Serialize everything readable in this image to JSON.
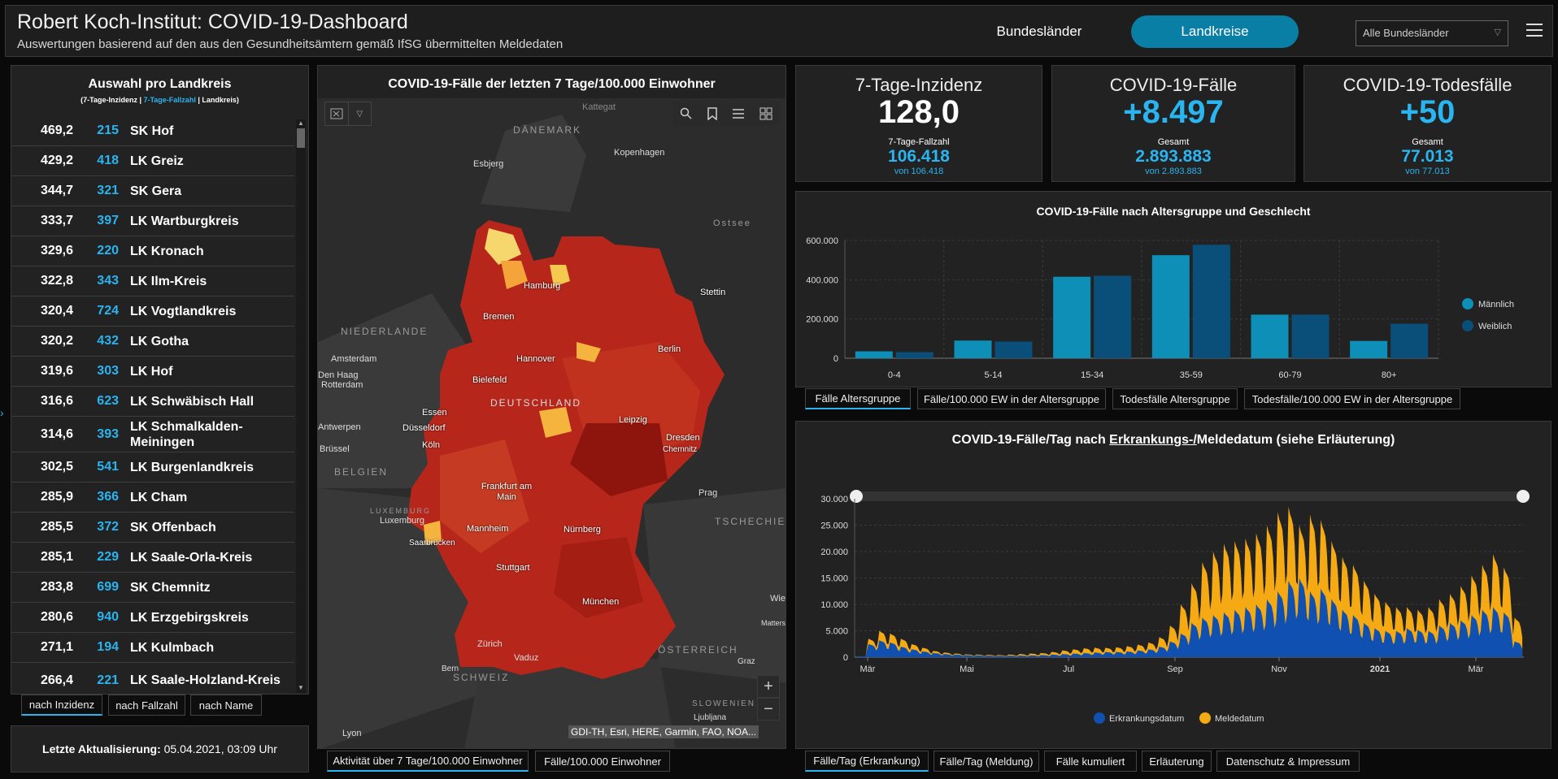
{
  "header": {
    "title": "Robert Koch-Institut: COVID-19-Dashboard",
    "subtitle": "Auswertungen basierend auf den aus den Gesundheitsämtern gemäß IfSG übermittelten Meldedaten",
    "tab_states": "Bundesländer",
    "tab_districts": "Landkreise",
    "select_value": "Alle Bundesländer",
    "accent": "#0a7fa6"
  },
  "list": {
    "title": "Auswahl pro Landkreis",
    "legend_a": "(7-Tage-Inzidenz | ",
    "legend_b": "7-Tage-Fallzahl",
    "legend_c": " | Landkreis)",
    "rows": [
      {
        "inc": "469,2",
        "cnt": "215",
        "name": "SK Hof"
      },
      {
        "inc": "429,2",
        "cnt": "418",
        "name": "LK Greiz"
      },
      {
        "inc": "344,7",
        "cnt": "321",
        "name": "SK Gera"
      },
      {
        "inc": "333,7",
        "cnt": "397",
        "name": "LK Wartburgkreis"
      },
      {
        "inc": "329,6",
        "cnt": "220",
        "name": "LK Kronach"
      },
      {
        "inc": "322,8",
        "cnt": "343",
        "name": "LK Ilm-Kreis"
      },
      {
        "inc": "320,4",
        "cnt": "724",
        "name": "LK Vogtlandkreis"
      },
      {
        "inc": "320,2",
        "cnt": "432",
        "name": "LK Gotha"
      },
      {
        "inc": "319,6",
        "cnt": "303",
        "name": "LK Hof"
      },
      {
        "inc": "316,6",
        "cnt": "623",
        "name": "LK Schwäbisch Hall"
      },
      {
        "inc": "314,6",
        "cnt": "393",
        "name": "LK Schmalkalden-Meiningen"
      },
      {
        "inc": "302,5",
        "cnt": "541",
        "name": "LK Burgenlandkreis"
      },
      {
        "inc": "285,9",
        "cnt": "366",
        "name": "LK Cham"
      },
      {
        "inc": "285,5",
        "cnt": "372",
        "name": "SK Offenbach"
      },
      {
        "inc": "285,1",
        "cnt": "229",
        "name": "LK Saale-Orla-Kreis"
      },
      {
        "inc": "283,8",
        "cnt": "699",
        "name": "SK Chemnitz"
      },
      {
        "inc": "280,6",
        "cnt": "940",
        "name": "LK Erzgebirgskreis"
      },
      {
        "inc": "271,1",
        "cnt": "194",
        "name": "LK Kulmbach"
      },
      {
        "inc": "266,4",
        "cnt": "221",
        "name": "LK Saale-Holzland-Kreis"
      }
    ],
    "sort_tabs": [
      "nach Inzidenz",
      "nach Fallzahl",
      "nach Name"
    ]
  },
  "update": {
    "label": "Letzte Aktualisierung:",
    "value": "05.04.2021, 03:09 Uhr"
  },
  "map": {
    "title": "COVID-19-Fälle der letzten 7 Tage/100.000 Einwohner",
    "attribution": "GDI-TH, Esri, HERE, Garmin, FAO, NOA...",
    "countries": [
      "DÄNEMARK",
      "NIEDERLANDE",
      "DEUTSCHLAND",
      "BELGIEN",
      "LUXEMBURG",
      "TSCHECHIE",
      "ÖSTERREICH",
      "SCHWEIZ",
      "SLOWENIEN"
    ],
    "cities": [
      "Kattegat",
      "Esbjerg",
      "Kopenhagen",
      "Ostsee",
      "Hamburg",
      "Stettin",
      "Bremen",
      "Amsterdam",
      "Den Haag",
      "Rotterdam",
      "Hannover",
      "Berlin",
      "Bielefeld",
      "Essen",
      "Düsseldorf",
      "Antwerpen",
      "Leipzig",
      "Dresden",
      "Köln",
      "Brüssel",
      "Chemnitz",
      "Frankfurt am Main",
      "Prag",
      "Luxemburg",
      "Saarbrücken",
      "Mannheim",
      "Nürnberg",
      "Stuttgart",
      "München",
      "Wie",
      "Matters",
      "Zürich",
      "Vaduz",
      "Graz",
      "Bern",
      "Ljubljana",
      "Lyon"
    ],
    "bottom_tabs": [
      "Aktivität über 7 Tage/100.000 Einwohner",
      "Fälle/100.000 Einwohner"
    ],
    "zoom_in": "+",
    "zoom_out": "−"
  },
  "kpis": [
    {
      "title": "7-Tage-Inzidenz",
      "value": "128,0",
      "sub_label": "7-Tage-Fallzahl",
      "sub_value": "106.418",
      "von": "von 106.418",
      "color": "#ffffff"
    },
    {
      "title": "COVID-19-Fälle",
      "value": "+8.497",
      "sub_label": "Gesamt",
      "sub_value": "2.893.883",
      "von": "von 2.893.883",
      "color": "#2ab4f0"
    },
    {
      "title": "COVID-19-Todesfälle",
      "value": "+50",
      "sub_label": "Gesamt",
      "sub_value": "77.013",
      "von": "von 77.013",
      "color": "#2ab4f0"
    }
  ],
  "age_chart": {
    "tabs": [
      "Fälle Altersgruppe",
      "Fälle/100.000 EW in der Altersgruppe",
      "Todesfälle Altersgruppe",
      "Todesfälle/100.000 EW in der Altersgruppe"
    ]
  },
  "daily_chart": {
    "title_a": "COVID-19-Fälle/Tag nach ",
    "title_u": "Erkrankungs-/",
    "title_b": "Meldedatum (siehe Erläuterung)",
    "tabs": [
      "Fälle/Tag (Erkrankung)",
      "Fälle/Tag (Meldung)",
      "Fälle kumuliert",
      "Erläuterung",
      "Datenschutz & Impressum"
    ]
  },
  "chart_data": [
    {
      "type": "bar",
      "title": "COVID-19-Fälle nach Altersgruppe und Geschlecht",
      "categories": [
        "0-4",
        "5-14",
        "15-34",
        "35-59",
        "60-79",
        "80+"
      ],
      "series": [
        {
          "name": "Männlich",
          "color": "#0d8fb8",
          "values": [
            35000,
            90000,
            415000,
            525000,
            222000,
            88000
          ]
        },
        {
          "name": "Weiblich",
          "color": "#0a4f7a",
          "values": [
            31000,
            85000,
            420000,
            578000,
            222000,
            176000
          ]
        }
      ],
      "ylim": [
        0,
        600000
      ],
      "yticks": [
        "0",
        "200.000",
        "400.000",
        "600.000"
      ],
      "legend": "right"
    },
    {
      "type": "area",
      "title": "COVID-19-Fälle/Tag nach Erkrankungs-/Meldedatum (siehe Erläuterung)",
      "x_labels": [
        "Mär",
        "Mai",
        "Jul",
        "Sep",
        "Nov",
        "2021",
        "Mär"
      ],
      "ylim": [
        0,
        30000
      ],
      "yticks": [
        "0",
        "5.000",
        "10.000",
        "15.000",
        "20.000",
        "25.000",
        "30.000"
      ],
      "series": [
        {
          "name": "Erkrankungsdatum",
          "color": "#1050b0",
          "weekly_peaks": [
            200,
            2500,
            3200,
            2800,
            2000,
            1500,
            1100,
            800,
            600,
            500,
            400,
            350,
            300,
            280,
            300,
            320,
            350,
            400,
            500,
            600,
            700,
            800,
            900,
            1000,
            1000,
            1100,
            1300,
            1500,
            2000,
            3000,
            4500,
            6500,
            7500,
            8000,
            8500,
            9000,
            9500,
            10000,
            11000,
            12500,
            14500,
            15000,
            12500,
            13000,
            11000,
            9000,
            8000,
            6500,
            5500,
            5000,
            5000,
            5500,
            5200,
            5000,
            6000,
            6500,
            7000,
            8000,
            9000,
            9500,
            8500,
            3000
          ]
        },
        {
          "name": "Meldedatum",
          "color": "#f5a912",
          "weekly_peaks": [
            100,
            3500,
            5000,
            4500,
            3500,
            2500,
            1800,
            1200,
            900,
            700,
            550,
            500,
            450,
            420,
            500,
            600,
            700,
            800,
            1000,
            1300,
            1500,
            1700,
            1800,
            1800,
            1900,
            2100,
            2400,
            2800,
            3800,
            6000,
            10000,
            14000,
            18000,
            20000,
            21500,
            22000,
            22500,
            23500,
            25000,
            27500,
            28500,
            25000,
            27000,
            26000,
            22000,
            19000,
            17500,
            14500,
            12000,
            10500,
            9500,
            9500,
            9000,
            9500,
            11000,
            12000,
            13500,
            15500,
            17500,
            19500,
            17000,
            7500
          ]
        }
      ],
      "legend": "bottom"
    }
  ]
}
